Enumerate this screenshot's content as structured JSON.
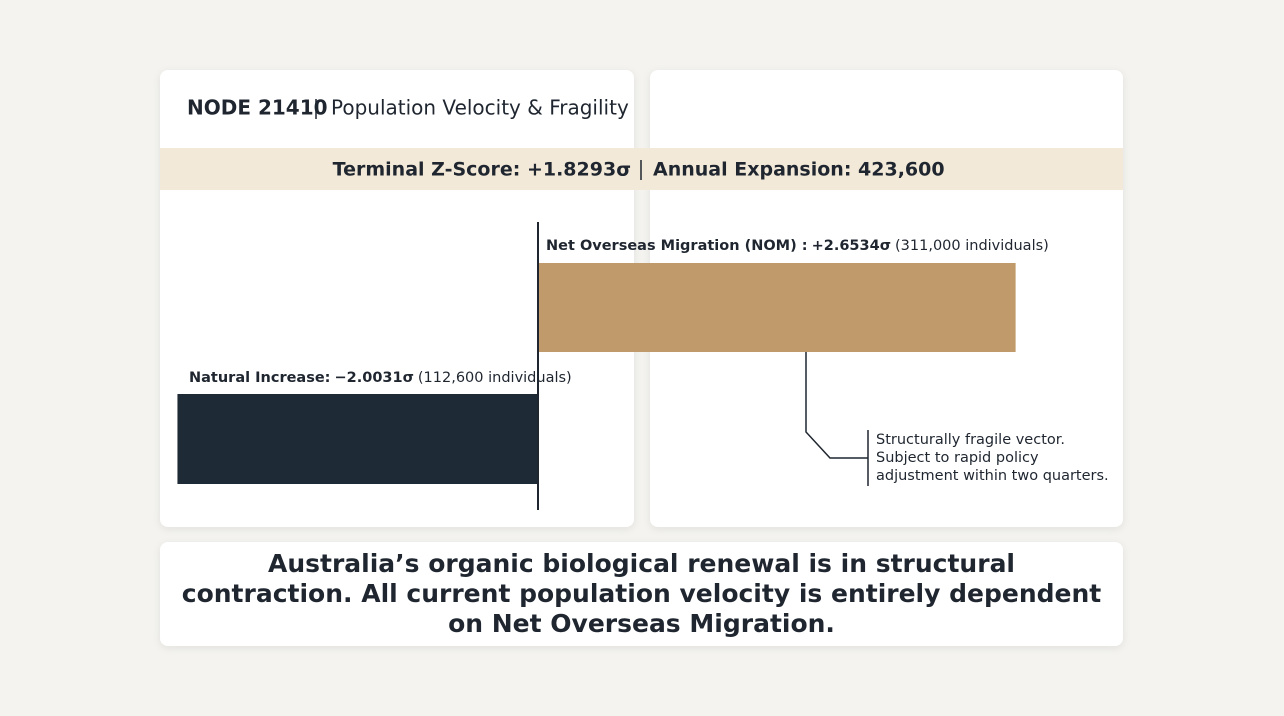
{
  "header": {
    "node": "NODE 21410",
    "title": "Population Velocity & Fragility"
  },
  "banner": {
    "z_score": "Terminal Z-Score: +1.8293σ",
    "expansion": "Annual Expansion: 423,600"
  },
  "chart_data": {
    "type": "bar",
    "orientation": "horizontal",
    "categories": [
      "Natural Increase:",
      "Net Overseas Migration (NOM) :"
    ],
    "values": [
      -2.0031,
      2.6534
    ],
    "value_labels": [
      "−2.0031σ",
      "+2.6534σ"
    ],
    "notes": [
      "(112,600 individuals)",
      "(311,000 individuals)"
    ],
    "colors": [
      "#1e2a36",
      "#c19a6b"
    ],
    "xlim": [
      -2.5,
      3.0
    ],
    "annotation": [
      "Structurally fragile vector.",
      "Subject to rapid policy",
      "adjustment within two quarters."
    ]
  },
  "footer": "Australia’s organic biological renewal is in structural contraction. All current population velocity is entirely dependent on Net Overseas Migration."
}
